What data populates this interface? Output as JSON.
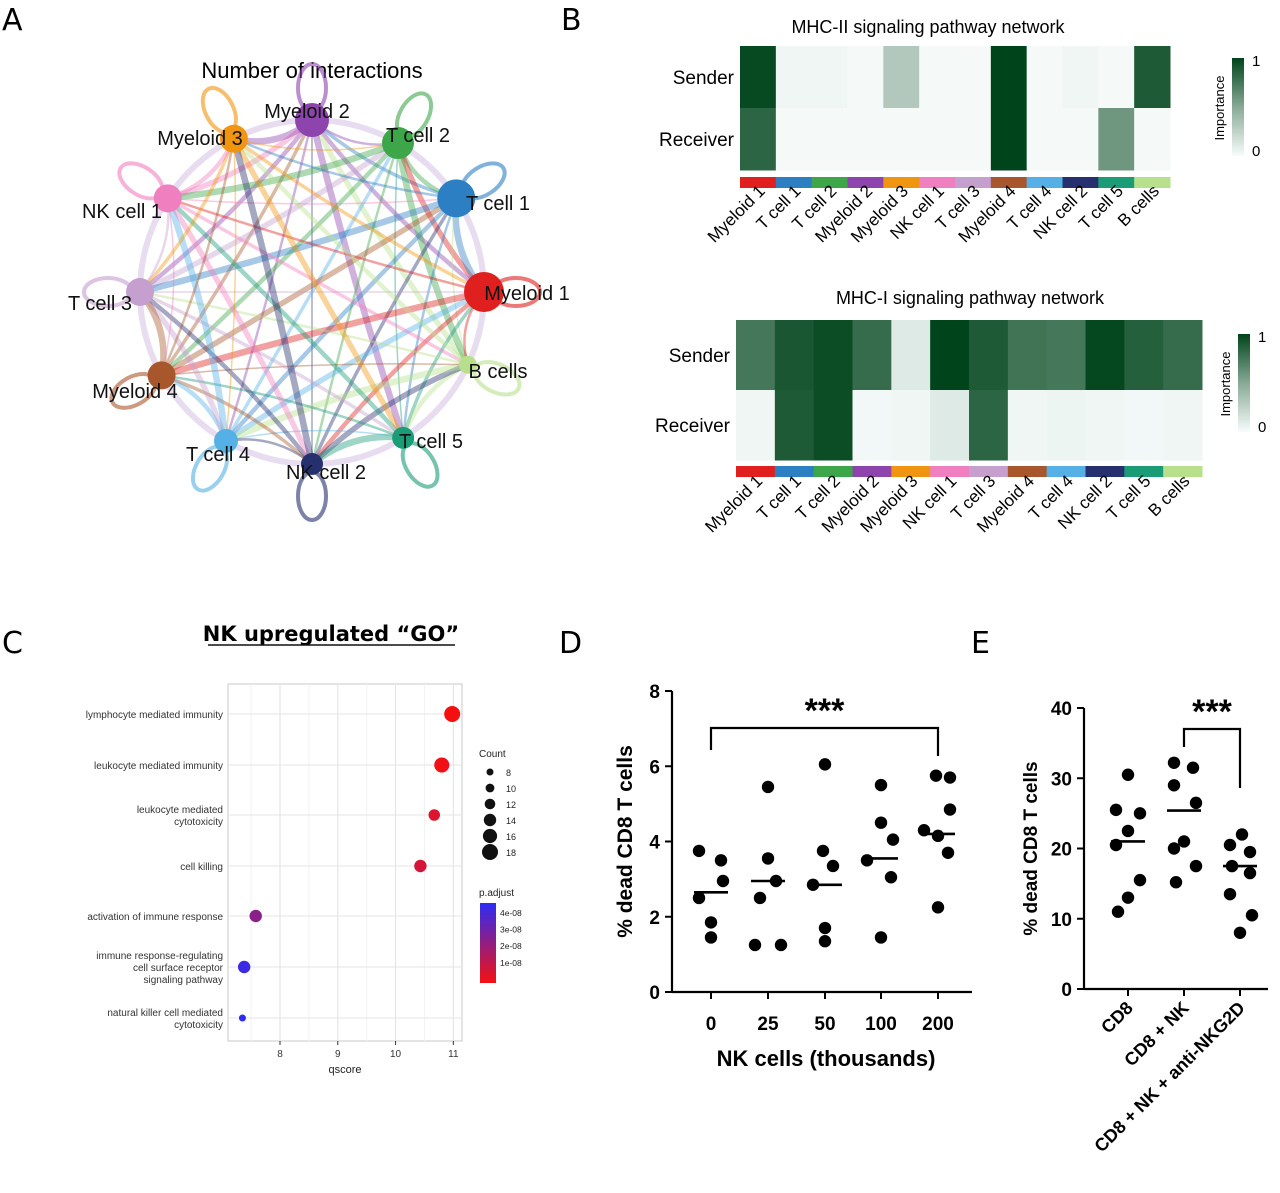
{
  "panel_letters": [
    "A",
    "B",
    "C",
    "D",
    "E"
  ],
  "chart_data": [
    {
      "panel": "A",
      "type": "network",
      "title": "Number of interactions",
      "nodes": [
        {
          "name": "Myeloid 2",
          "color": "#8e44ad"
        },
        {
          "name": "T cell 2",
          "color": "#3da649"
        },
        {
          "name": "T cell 1",
          "color": "#2d7fc3"
        },
        {
          "name": "Myeloid 1",
          "color": "#e0201f"
        },
        {
          "name": "B cells",
          "color": "#b8df8c"
        },
        {
          "name": "T cell 5",
          "color": "#1a9c76"
        },
        {
          "name": "NK cell 2",
          "color": "#26306e"
        },
        {
          "name": "T cell 4",
          "color": "#55b0e6"
        },
        {
          "name": "Myeloid 4",
          "color": "#a8572c"
        },
        {
          "name": "T cell 3",
          "color": "#c59fce"
        },
        {
          "name": "NK cell 1",
          "color": "#f07fbf"
        },
        {
          "name": "Myeloid 3",
          "color": "#f0950f"
        }
      ]
    },
    {
      "panel": "B",
      "type": "heatmap",
      "title": "MHC-II signaling pathway network",
      "rows": [
        "Sender",
        "Receiver"
      ],
      "columns": [
        "Myeloid 1",
        "T cell 1",
        "T cell 2",
        "Myeloid 2",
        "Myeloid 3",
        "NK cell 1",
        "T cell 3",
        "Myeloid 4",
        "T cell 4",
        "NK cell 2",
        "T cell 5",
        "B cells"
      ],
      "column_colors": [
        "#e0201f",
        "#2d7fc3",
        "#3da649",
        "#8e44ad",
        "#f0950f",
        "#f07fbf",
        "#c59fce",
        "#a8572c",
        "#55b0e6",
        "#26306e",
        "#1a9c76",
        "#b8df8c"
      ],
      "values": [
        [
          0.97,
          0.03,
          0.03,
          0.01,
          0.28,
          0.01,
          0.01,
          1.0,
          0.01,
          0.03,
          0.01,
          0.88
        ],
        [
          0.82,
          0.01,
          0.01,
          0.01,
          0.01,
          0.01,
          0.01,
          1.0,
          0.01,
          0.01,
          0.55,
          0.01
        ]
      ],
      "legend_title": "Importance",
      "legend_ticks": [
        "0",
        "1"
      ]
    },
    {
      "panel": "B",
      "type": "heatmap",
      "title": "MHC-I signaling pathway network",
      "rows": [
        "Sender",
        "Receiver"
      ],
      "columns": [
        "Myeloid 1",
        "T cell 1",
        "T cell 2",
        "Myeloid 2",
        "Myeloid 3",
        "NK cell 1",
        "T cell 3",
        "Myeloid 4",
        "T cell 4",
        "NK cell 2",
        "T cell 5",
        "B cells"
      ],
      "column_colors": [
        "#e0201f",
        "#2d7fc3",
        "#3da649",
        "#8e44ad",
        "#f0950f",
        "#f07fbf",
        "#c59fce",
        "#a8572c",
        "#55b0e6",
        "#26306e",
        "#1a9c76",
        "#b8df8c"
      ],
      "values": [
        [
          0.72,
          0.9,
          0.95,
          0.78,
          0.1,
          1.0,
          0.88,
          0.74,
          0.72,
          0.98,
          0.85,
          0.78
        ],
        [
          0.03,
          0.88,
          0.95,
          0.02,
          0.03,
          0.1,
          0.82,
          0.03,
          0.04,
          0.03,
          0.02,
          0.03
        ]
      ],
      "legend_title": "Importance",
      "legend_ticks": [
        "0",
        "1"
      ]
    },
    {
      "panel": "C",
      "type": "dot",
      "title": "NK upregulated “GO”",
      "xlabel": "qscore",
      "xlim": [
        7.1,
        11.15
      ],
      "xticks": [
        "8",
        "9",
        "10",
        "11"
      ],
      "terms": [
        {
          "label": [
            "lymphocyte mediated immunity"
          ],
          "qscore": 10.98,
          "count": 18,
          "padj": 5e-09
        },
        {
          "label": [
            "leukocyte mediated immunity"
          ],
          "qscore": 10.8,
          "count": 17,
          "padj": 6e-09
        },
        {
          "label": [
            "leukocyte mediated",
            "cytotoxicity"
          ],
          "qscore": 10.67,
          "count": 13,
          "padj": 1e-08
        },
        {
          "label": [
            "cell killing"
          ],
          "qscore": 10.43,
          "count": 14,
          "padj": 1.2e-08
        },
        {
          "label": [
            "activation of immune response"
          ],
          "qscore": 7.58,
          "count": 14,
          "padj": 2.6e-08
        },
        {
          "label": [
            "immune response-regulating",
            "cell surface receptor",
            "signaling pathway"
          ],
          "qscore": 7.38,
          "count": 14,
          "padj": 4.2e-08
        },
        {
          "label": [
            "natural killer cell mediated",
            "cytotoxicity"
          ],
          "qscore": 7.35,
          "count": 8,
          "padj": 4.5e-08
        }
      ],
      "size_legend_title": "Count",
      "size_legend": [
        "8",
        "10",
        "12",
        "14",
        "16",
        "18"
      ],
      "color_legend_title": "p.adjust",
      "color_legend": [
        "4e-08",
        "3e-08",
        "2e-08",
        "1e-08"
      ]
    },
    {
      "panel": "D",
      "type": "scatter",
      "ylabel": "% dead CD8 T cells",
      "xlabel": "NK cells (thousands)",
      "categories": [
        "0",
        "25",
        "50",
        "100",
        "200"
      ],
      "ylim": [
        0,
        8
      ],
      "yticks": [
        "0",
        "2",
        "4",
        "6",
        "8"
      ],
      "points": [
        [
          3.75,
          3.5,
          2.95,
          2.5,
          1.85,
          1.45
        ],
        [
          5.45,
          3.55,
          2.95,
          2.5,
          1.25,
          1.25
        ],
        [
          6.05,
          3.75,
          3.35,
          2.85,
          1.7,
          1.35
        ],
        [
          5.5,
          4.5,
          4.05,
          3.5,
          3.05,
          1.45
        ],
        [
          5.75,
          5.7,
          4.85,
          4.3,
          4.15,
          3.7,
          2.25
        ]
      ],
      "medians": [
        2.65,
        2.95,
        2.85,
        3.55,
        4.2
      ],
      "annotation": "***"
    },
    {
      "panel": "E",
      "type": "scatter",
      "ylabel": "% dead CD8 T cells",
      "categories": [
        "CD8",
        "CD8 + NK",
        "CD8 + NK + anti-NKG2D"
      ],
      "ylim": [
        0,
        40
      ],
      "yticks": [
        "0",
        "10",
        "20",
        "30",
        "40"
      ],
      "points": [
        [
          30.5,
          25.5,
          25,
          22.5,
          20.5,
          15.5,
          13,
          11
        ],
        [
          32.2,
          31.5,
          29,
          26.5,
          21,
          20,
          17.5,
          15.2
        ],
        [
          22,
          20.5,
          19.5,
          17.5,
          16.5,
          13.5,
          10.5,
          8
        ]
      ],
      "medians": [
        21,
        25.4,
        17.5
      ],
      "annotation": "***"
    }
  ]
}
